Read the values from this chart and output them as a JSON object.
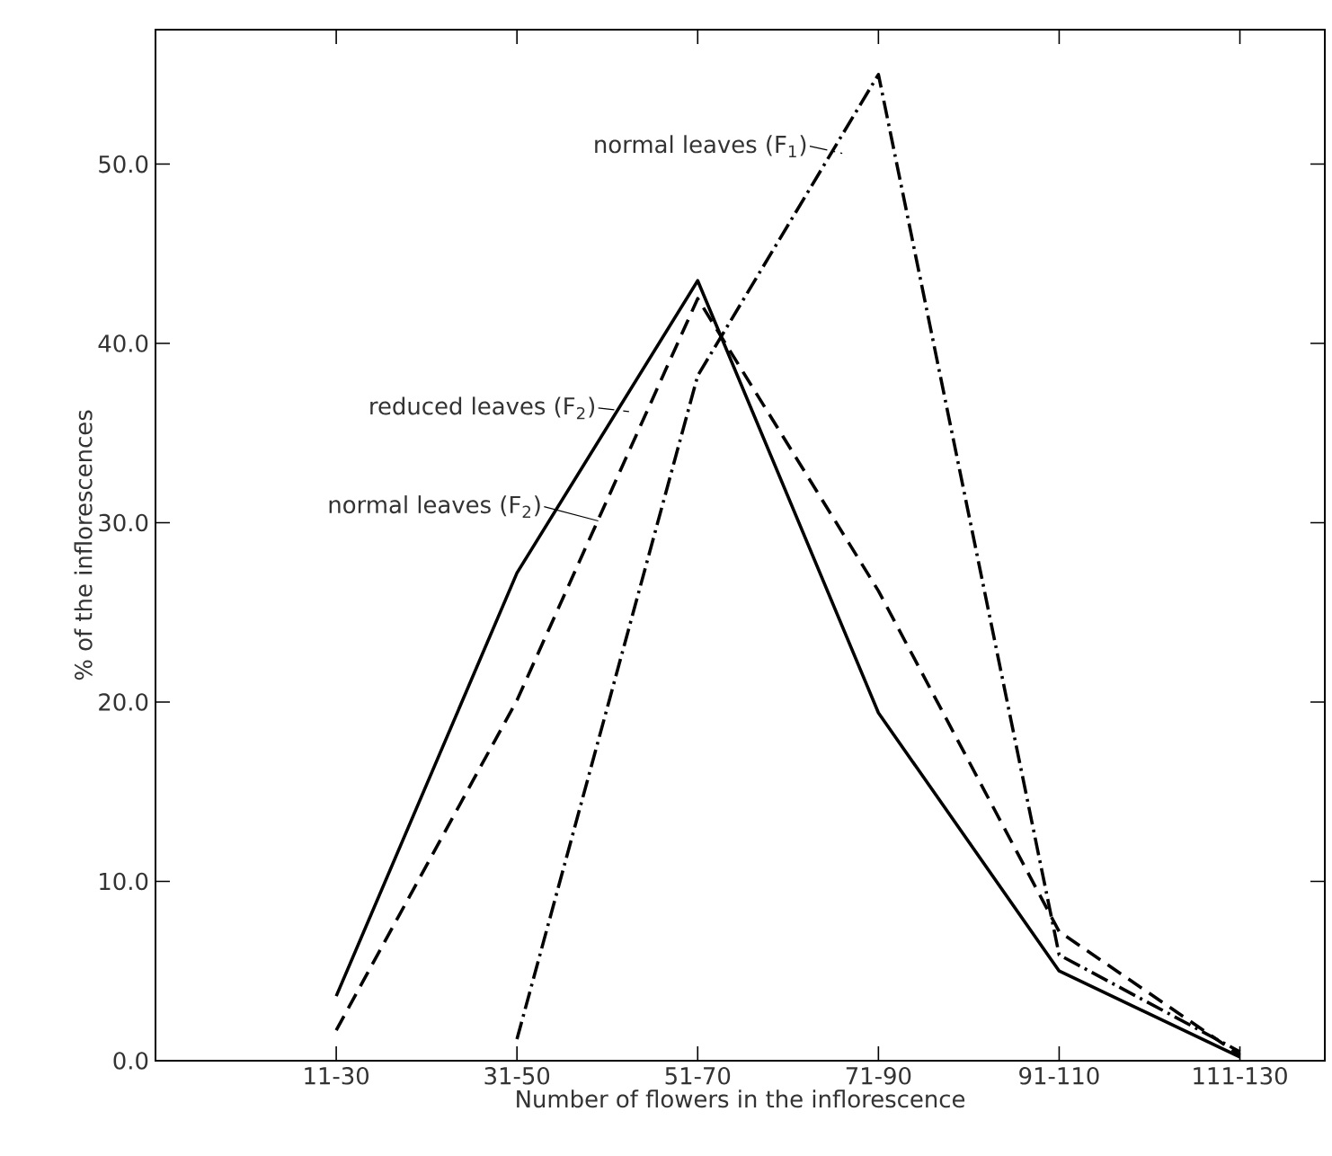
{
  "chart_data": {
    "type": "line",
    "xlabel": "Number of flowers in the inflorescence",
    "ylabel": "% of the inflorescences",
    "categories": [
      "11-30",
      "31-50",
      "51-70",
      "71-90",
      "91-110",
      "111-130"
    ],
    "ylim": [
      0,
      57.5
    ],
    "yticks": [
      {
        "value": 0,
        "label": "0.0"
      },
      {
        "value": 10,
        "label": "10.0"
      },
      {
        "value": 20,
        "label": "20.0"
      },
      {
        "value": 30,
        "label": "30.0"
      },
      {
        "value": 40,
        "label": "40.0"
      },
      {
        "value": 50,
        "label": "50.0"
      }
    ],
    "grid": false,
    "legend": "top left",
    "marker": "none",
    "series": [
      {
        "name": "normal leaves (F$_{1}$)",
        "color": "#000000",
        "line_style": "dashdot",
        "values": [
          null,
          1.2,
          38.2,
          55.0,
          5.9,
          0.5
        ]
      },
      {
        "name": "reduced leaves (F$_{2}$)",
        "color": "#000000",
        "line_style": "dashed",
        "values": [
          1.7,
          20.1,
          42.5,
          26.2,
          7.2,
          0.3
        ]
      },
      {
        "name": "normal leaves (F$_{2}$)",
        "color": "#000000",
        "line_style": "solid",
        "values": [
          3.6,
          27.2,
          43.5,
          19.4,
          5.0,
          0.2
        ]
      }
    ]
  }
}
